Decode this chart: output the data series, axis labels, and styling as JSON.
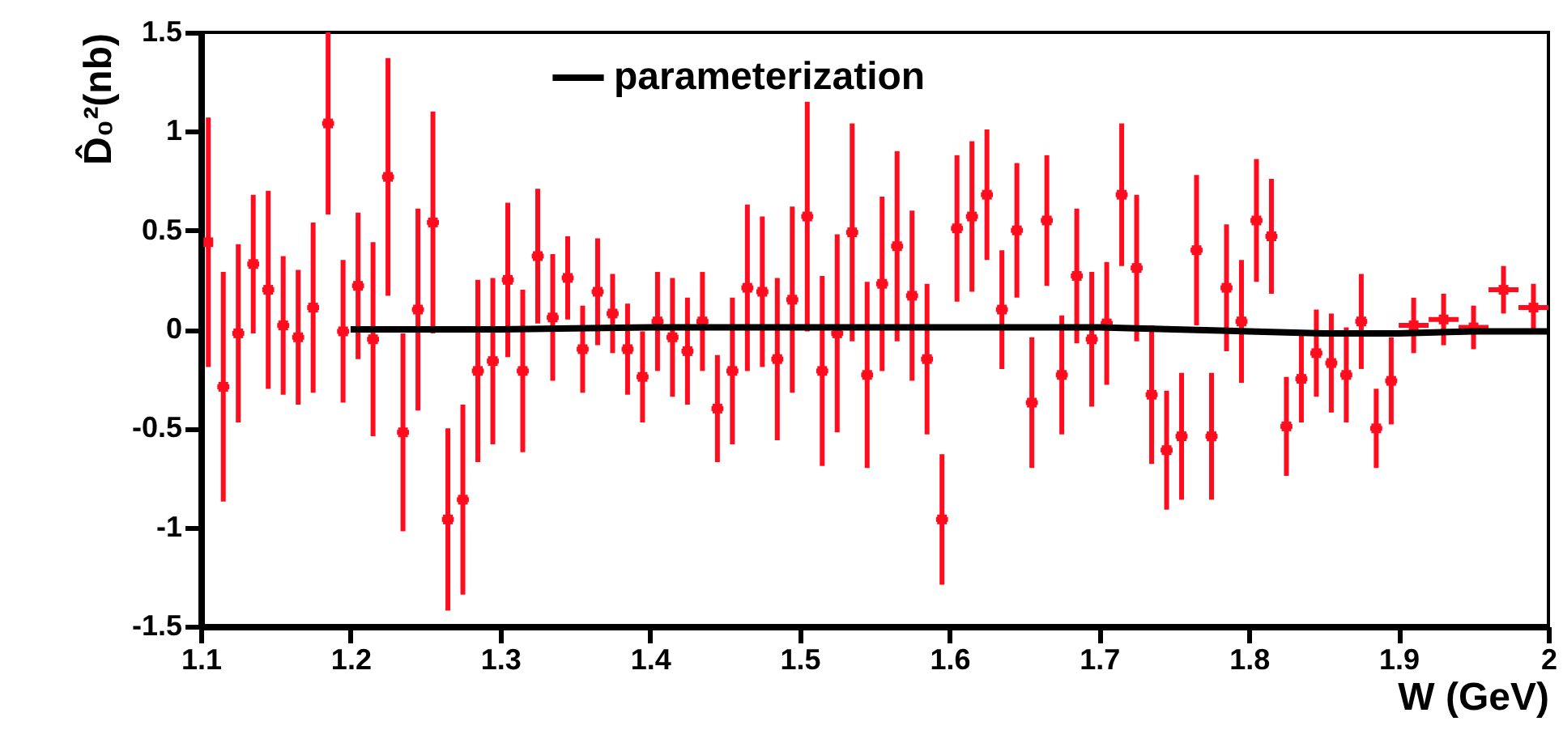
{
  "chart_data": {
    "type": "scatter",
    "xlabel": "W (GeV)",
    "ylabel": "D̂₀²(nb)",
    "xlim": [
      1.1,
      2.0
    ],
    "xticks": [
      1.1,
      1.2,
      1.3,
      1.4,
      1.5,
      1.6,
      1.7,
      1.8,
      1.9,
      2
    ],
    "ylim": [
      -1.5,
      1.5
    ],
    "yticks": [
      -1.5,
      -1,
      -0.5,
      0,
      0.5,
      1,
      1.5
    ],
    "legend": "top",
    "series": [
      {
        "color": "#ff0d1e",
        "marker": "square",
        "x": [
          1.105,
          1.115,
          1.125,
          1.135,
          1.145,
          1.155,
          1.165,
          1.175,
          1.185,
          1.195,
          1.205,
          1.215,
          1.225,
          1.235,
          1.245,
          1.255,
          1.265,
          1.275,
          1.285,
          1.295,
          1.305,
          1.315,
          1.325,
          1.335,
          1.345,
          1.355,
          1.365,
          1.375,
          1.385,
          1.395,
          1.405,
          1.415,
          1.425,
          1.435,
          1.445,
          1.455,
          1.465,
          1.475,
          1.485,
          1.495,
          1.505,
          1.515,
          1.525,
          1.535,
          1.545,
          1.555,
          1.565,
          1.575,
          1.585,
          1.595,
          1.605,
          1.615,
          1.625,
          1.635,
          1.645,
          1.655,
          1.665,
          1.675,
          1.685,
          1.695,
          1.705,
          1.715,
          1.725,
          1.735,
          1.745,
          1.755,
          1.765,
          1.775,
          1.785,
          1.795,
          1.805,
          1.815,
          1.825,
          1.835,
          1.845,
          1.855,
          1.865,
          1.875,
          1.885,
          1.895,
          1.91,
          1.93,
          1.95,
          1.97,
          1.99
        ],
        "values": [
          0.44,
          -0.29,
          -0.02,
          0.33,
          0.2,
          0.02,
          -0.04,
          0.11,
          1.04,
          -0.01,
          0.22,
          -0.05,
          0.77,
          -0.52,
          0.1,
          0.54,
          -0.96,
          -0.86,
          -0.21,
          -0.16,
          0.25,
          -0.21,
          0.37,
          0.06,
          0.26,
          -0.1,
          0.19,
          0.08,
          -0.1,
          -0.24,
          0.04,
          -0.04,
          -0.11,
          0.04,
          -0.4,
          -0.21,
          0.21,
          0.19,
          -0.15,
          0.15,
          0.57,
          -0.21,
          -0.02,
          0.49,
          -0.23,
          0.23,
          0.42,
          0.17,
          -0.15,
          -0.96,
          0.51,
          0.57,
          0.68,
          0.1,
          0.5,
          -0.37,
          0.55,
          -0.23,
          0.27,
          -0.05,
          0.03,
          0.68,
          0.31,
          -0.33,
          -0.61,
          -0.54,
          0.4,
          -0.54,
          0.21,
          0.04,
          0.55,
          0.47,
          -0.49,
          -0.25,
          -0.12,
          -0.17,
          -0.23,
          0.04,
          -0.5,
          -0.26,
          0.02,
          0.05,
          0.01,
          0.2,
          0.11
        ],
        "errors": [
          0.63,
          0.58,
          0.45,
          0.35,
          0.5,
          0.35,
          0.34,
          0.43,
          0.46,
          0.36,
          0.37,
          0.49,
          0.6,
          0.5,
          0.51,
          0.56,
          0.46,
          0.48,
          0.46,
          0.42,
          0.39,
          0.41,
          0.34,
          0.32,
          0.21,
          0.22,
          0.27,
          0.2,
          0.23,
          0.23,
          0.25,
          0.3,
          0.27,
          0.25,
          0.27,
          0.37,
          0.42,
          0.38,
          0.41,
          0.47,
          0.58,
          0.48,
          0.5,
          0.55,
          0.47,
          0.44,
          0.48,
          0.43,
          0.38,
          0.33,
          0.37,
          0.38,
          0.33,
          0.3,
          0.34,
          0.33,
          0.33,
          0.3,
          0.34,
          0.34,
          0.31,
          0.36,
          0.37,
          0.35,
          0.3,
          0.32,
          0.38,
          0.32,
          0.32,
          0.31,
          0.31,
          0.29,
          0.25,
          0.22,
          0.22,
          0.25,
          0.24,
          0.24,
          0.2,
          0.22,
          0.14,
          0.13,
          0.11,
          0.12,
          0.12
        ],
        "xerrors": [
          null,
          0.004,
          0.004,
          0.004,
          0.004,
          0.004,
          0.004,
          0.004,
          0.004,
          0.004,
          0.004,
          0.004,
          0.004,
          0.004,
          0.004,
          0.004,
          0.004,
          0.004,
          0.004,
          0.004,
          0.004,
          0.004,
          0.004,
          0.004,
          0.004,
          0.004,
          0.004,
          0.004,
          0.004,
          0.004,
          0.004,
          0.004,
          0.004,
          0.004,
          0.004,
          0.004,
          0.004,
          0.004,
          0.004,
          0.004,
          0.004,
          0.004,
          0.004,
          0.004,
          0.004,
          0.004,
          0.004,
          0.004,
          0.004,
          0.004,
          0.004,
          0.004,
          0.004,
          0.004,
          0.004,
          0.004,
          0.004,
          0.004,
          0.004,
          0.004,
          0.004,
          0.004,
          0.004,
          0.004,
          0.004,
          0.004,
          0.004,
          0.004,
          0.004,
          0.004,
          0.004,
          0.004,
          0.004,
          0.004,
          0.004,
          0.004,
          0.004,
          0.004,
          0.004,
          0.004,
          0.01,
          0.01,
          0.01,
          0.01,
          0.01
        ]
      },
      {
        "type": "line",
        "name": "parameterization",
        "color": "#000000",
        "x": [
          1.2,
          1.3,
          1.4,
          1.5,
          1.6,
          1.7,
          1.75,
          1.8,
          1.85,
          1.9,
          1.95,
          2.0
        ],
        "values": [
          0,
          0,
          0.01,
          0.01,
          0.01,
          0.01,
          0,
          -0.01,
          -0.02,
          -0.02,
          -0.01,
          -0.01
        ]
      }
    ]
  }
}
